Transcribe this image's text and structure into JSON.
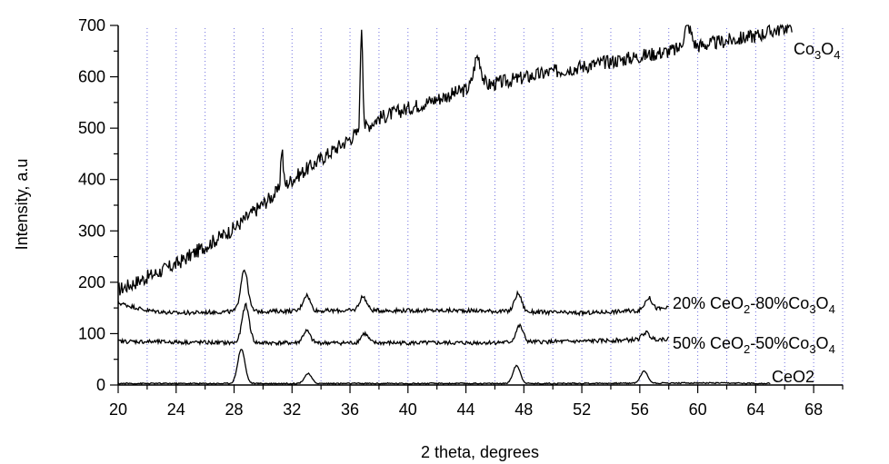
{
  "chart_data": {
    "type": "line",
    "title": "",
    "xlabel": "2 theta, degrees",
    "ylabel": "Intensity, a.u",
    "xlim": [
      20,
      70
    ],
    "ylim": [
      0,
      700
    ],
    "x_ticks": [
      "20",
      "24",
      "28",
      "32",
      "36",
      "40",
      "44",
      "48",
      "52",
      "56",
      "60",
      "64",
      "68"
    ],
    "y_ticks": [
      "0",
      "100",
      "200",
      "300",
      "400",
      "500",
      "600",
      "700"
    ],
    "vertical_gridlines": "dotted, every 2 degrees",
    "series": [
      {
        "name": "Co3O4",
        "label_parts": [
          "Co",
          "3",
          "O",
          "4"
        ],
        "baseline": [
          [
            20,
            185
          ],
          [
            24,
            235
          ],
          [
            28,
            305
          ],
          [
            32,
            400
          ],
          [
            36,
            480
          ],
          [
            38,
            520
          ],
          [
            44,
            575
          ],
          [
            50,
            610
          ],
          [
            56,
            640
          ],
          [
            60,
            660
          ],
          [
            64,
            680
          ],
          [
            66.5,
            700
          ]
        ],
        "peaks": [
          [
            31.3,
            460
          ],
          [
            36.8,
            700
          ],
          [
            44.8,
            640
          ],
          [
            59.3,
            700
          ]
        ]
      },
      {
        "name": "20% CeO2-80%Co3O4",
        "label_parts": [
          "20% CeO",
          "2",
          "-80%Co",
          "3",
          "O",
          "4"
        ],
        "baseline": [
          [
            20,
            160
          ],
          [
            22,
            145
          ],
          [
            24,
            140
          ],
          [
            28,
            143
          ],
          [
            36,
            145
          ],
          [
            44,
            145
          ],
          [
            52,
            140
          ],
          [
            56,
            145
          ],
          [
            58,
            150
          ]
        ],
        "peaks": [
          [
            28.7,
            225
          ],
          [
            33,
            175
          ],
          [
            36.9,
            172
          ],
          [
            47.6,
            178
          ],
          [
            56.6,
            170
          ]
        ]
      },
      {
        "name": "50% CeO2-50%Co3O4",
        "label_parts": [
          "50% CeO",
          "2",
          "-50%Co",
          "3",
          "O",
          "4"
        ],
        "baseline": [
          [
            20,
            85
          ],
          [
            28,
            82
          ],
          [
            36,
            82
          ],
          [
            44,
            82
          ],
          [
            52,
            85
          ],
          [
            58,
            90
          ]
        ],
        "peaks": [
          [
            28.8,
            155
          ],
          [
            33,
            105
          ],
          [
            37,
            100
          ],
          [
            47.7,
            115
          ],
          [
            56.4,
            102
          ]
        ]
      },
      {
        "name": "CeO2",
        "label_parts": [
          "CeO2"
        ],
        "baseline": [
          [
            20,
            3
          ],
          [
            30,
            3
          ],
          [
            40,
            3
          ],
          [
            50,
            3
          ],
          [
            60,
            4
          ],
          [
            65,
            3
          ]
        ],
        "peaks": [
          [
            28.5,
            70
          ],
          [
            33.1,
            22
          ],
          [
            47.5,
            38
          ],
          [
            56.3,
            27
          ]
        ]
      }
    ]
  }
}
